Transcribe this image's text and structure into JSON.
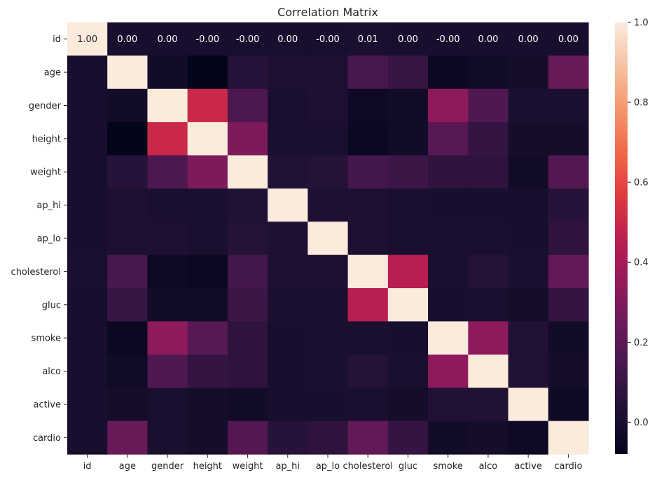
{
  "chart_data": {
    "type": "heatmap",
    "title": "Correlation Matrix",
    "xlabel": "",
    "ylabel": "",
    "rows": [
      "id",
      "age",
      "gender",
      "height",
      "weight",
      "ap_hi",
      "ap_lo",
      "cholesterol",
      "gluc",
      "smoke",
      "alco",
      "active",
      "cardio"
    ],
    "columns": [
      "id",
      "age",
      "gender",
      "height",
      "weight",
      "ap_hi",
      "ap_lo",
      "cholesterol",
      "gluc",
      "smoke",
      "alco",
      "active",
      "cardio"
    ],
    "values": [
      [
        1.0,
        0.0,
        0.0,
        -0.0,
        -0.0,
        0.0,
        -0.0,
        0.01,
        0.0,
        -0.0,
        0.0,
        0.0,
        0.0
      ],
      [
        0.0,
        1.0,
        -0.02,
        -0.08,
        0.05,
        0.02,
        0.02,
        0.15,
        0.1,
        -0.05,
        -0.03,
        -0.01,
        0.24
      ],
      [
        0.0,
        -0.02,
        1.0,
        0.5,
        0.16,
        0.01,
        0.02,
        -0.04,
        -0.02,
        0.34,
        0.17,
        0.01,
        0.01
      ],
      [
        -0.0,
        -0.08,
        0.5,
        1.0,
        0.29,
        0.01,
        0.01,
        -0.05,
        -0.02,
        0.19,
        0.09,
        -0.01,
        -0.01
      ],
      [
        -0.0,
        0.05,
        0.16,
        0.29,
        1.0,
        0.03,
        0.04,
        0.14,
        0.11,
        0.07,
        0.07,
        -0.02,
        0.18
      ],
      [
        0.0,
        0.02,
        0.01,
        0.01,
        0.03,
        1.0,
        0.02,
        0.02,
        0.01,
        -0.0,
        0.0,
        -0.0,
        0.05
      ],
      [
        -0.0,
        0.02,
        0.02,
        0.01,
        0.04,
        0.02,
        1.0,
        0.02,
        0.01,
        0.01,
        0.01,
        0.0,
        0.07
      ],
      [
        0.01,
        0.15,
        -0.04,
        -0.05,
        0.14,
        0.02,
        0.02,
        1.0,
        0.45,
        0.01,
        0.04,
        0.01,
        0.22
      ],
      [
        0.0,
        0.1,
        -0.02,
        -0.02,
        0.11,
        0.01,
        0.01,
        0.45,
        1.0,
        -0.0,
        0.01,
        -0.01,
        0.09
      ],
      [
        -0.0,
        -0.05,
        0.34,
        0.19,
        0.07,
        -0.0,
        0.01,
        0.01,
        -0.0,
        1.0,
        0.34,
        0.03,
        -0.02
      ],
      [
        0.0,
        -0.03,
        0.17,
        0.09,
        0.07,
        0.0,
        0.01,
        0.04,
        0.01,
        0.34,
        1.0,
        0.03,
        -0.01
      ],
      [
        0.0,
        -0.01,
        0.01,
        -0.01,
        -0.02,
        -0.0,
        0.0,
        0.01,
        -0.01,
        0.03,
        0.03,
        1.0,
        -0.04
      ],
      [
        0.0,
        0.24,
        0.01,
        -0.01,
        0.18,
        0.05,
        0.07,
        0.22,
        0.09,
        -0.02,
        -0.01,
        -0.04,
        1.0
      ]
    ],
    "annotated_row": "id",
    "annotations": [
      "1.00",
      "0.00",
      "0.00",
      "-0.00",
      "-0.00",
      "0.00",
      "-0.00",
      "0.01",
      "0.00",
      "-0.00",
      "0.00",
      "0.00",
      "0.00"
    ],
    "colorbar": {
      "colormap": "rocket",
      "vmin": -0.08,
      "vmax": 1.0,
      "ticks": [
        0.0,
        0.2,
        0.4,
        0.6,
        0.8,
        1.0
      ],
      "tick_labels": [
        "0.0",
        "0.2",
        "0.4",
        "0.6",
        "0.8",
        "1.0"
      ]
    }
  }
}
